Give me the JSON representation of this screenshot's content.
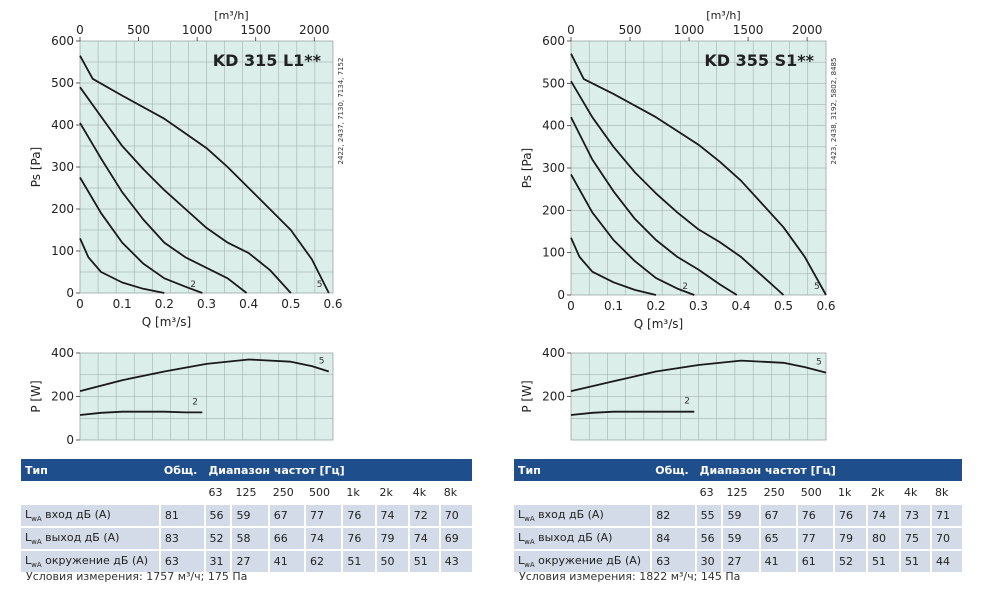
{
  "chart_data": [
    {
      "type": "line",
      "title": "KD 315 L1**",
      "side_note": "2422, 2437, 7130, 7134, 7152",
      "xlabel": "Q [m³/s]",
      "ylabel": "Ps [Pa]",
      "top_axis_label": "[m³/h]",
      "xlim": [
        0,
        0.6
      ],
      "ylim": [
        0,
        600
      ],
      "x_ticks": [
        "0",
        "0.1",
        "0.2",
        "0.3",
        "0.4",
        "0.5",
        "0.6"
      ],
      "y_ticks": [
        "0",
        "100",
        "200",
        "300",
        "400",
        "500",
        "600"
      ],
      "top_ticks": [
        "0",
        "500",
        "1000",
        "1500",
        "2000"
      ],
      "series": [
        {
          "name": "",
          "x": [
            0,
            0.02,
            0.05,
            0.1,
            0.15,
            0.2
          ],
          "y": [
            130,
            85,
            50,
            25,
            10,
            0
          ]
        },
        {
          "name": "2",
          "x": [
            0,
            0.05,
            0.1,
            0.15,
            0.2,
            0.25,
            0.29
          ],
          "y": [
            275,
            190,
            120,
            70,
            35,
            15,
            0
          ]
        },
        {
          "name": "",
          "x": [
            0,
            0.05,
            0.1,
            0.15,
            0.2,
            0.25,
            0.3,
            0.35,
            0.395
          ],
          "y": [
            405,
            320,
            240,
            175,
            120,
            85,
            60,
            35,
            0
          ]
        },
        {
          "name": "",
          "x": [
            0,
            0.05,
            0.1,
            0.15,
            0.2,
            0.25,
            0.3,
            0.35,
            0.4,
            0.45,
            0.5
          ],
          "y": [
            490,
            420,
            350,
            295,
            245,
            200,
            155,
            120,
            95,
            55,
            0
          ]
        },
        {
          "name": "5",
          "x": [
            0,
            0.03,
            0.1,
            0.2,
            0.3,
            0.35,
            0.4,
            0.45,
            0.5,
            0.55,
            0.59
          ],
          "y": [
            565,
            510,
            470,
            415,
            345,
            300,
            250,
            200,
            150,
            80,
            0
          ]
        }
      ]
    },
    {
      "type": "line",
      "xlabel": "",
      "ylabel": "P [W]",
      "xlim": [
        0,
        0.6
      ],
      "ylim": [
        0,
        400
      ],
      "y_ticks": [
        "0",
        "200",
        "400"
      ],
      "series": [
        {
          "name": "2",
          "x": [
            0,
            0.05,
            0.1,
            0.15,
            0.2,
            0.25,
            0.29
          ],
          "y": [
            115,
            125,
            130,
            130,
            130,
            127,
            127
          ]
        },
        {
          "name": "5",
          "x": [
            0,
            0.1,
            0.2,
            0.3,
            0.4,
            0.5,
            0.55,
            0.59
          ],
          "y": [
            225,
            275,
            315,
            350,
            370,
            360,
            340,
            315
          ]
        }
      ]
    },
    {
      "type": "line",
      "title": "KD 355 S1**",
      "side_note": "2423, 2438, 3192, 5802, 8485",
      "xlabel": "Q [m³/s]",
      "ylabel": "Ps [Pa]",
      "top_axis_label": "[m³/h]",
      "xlim": [
        0,
        0.6
      ],
      "ylim": [
        0,
        600
      ],
      "x_ticks": [
        "0",
        "0.1",
        "0.2",
        "0.3",
        "0.4",
        "0.5",
        "0.6"
      ],
      "y_ticks": [
        "0",
        "100",
        "200",
        "300",
        "400",
        "500",
        "600"
      ],
      "top_ticks": [
        "0",
        "500",
        "1000",
        "1500",
        "2000"
      ],
      "series": [
        {
          "name": "",
          "x": [
            0,
            0.02,
            0.05,
            0.1,
            0.15,
            0.2
          ],
          "y": [
            135,
            90,
            55,
            30,
            12,
            0
          ]
        },
        {
          "name": "2",
          "x": [
            0,
            0.05,
            0.1,
            0.15,
            0.2,
            0.25,
            0.29
          ],
          "y": [
            285,
            195,
            130,
            80,
            40,
            15,
            0
          ]
        },
        {
          "name": "",
          "x": [
            0,
            0.05,
            0.1,
            0.15,
            0.2,
            0.25,
            0.3,
            0.35,
            0.39
          ],
          "y": [
            420,
            320,
            245,
            180,
            130,
            90,
            60,
            25,
            0
          ]
        },
        {
          "name": "",
          "x": [
            0,
            0.05,
            0.1,
            0.15,
            0.2,
            0.25,
            0.3,
            0.35,
            0.4,
            0.45,
            0.5
          ],
          "y": [
            505,
            420,
            350,
            290,
            240,
            195,
            155,
            125,
            90,
            45,
            0
          ]
        },
        {
          "name": "5",
          "x": [
            0,
            0.03,
            0.1,
            0.2,
            0.3,
            0.35,
            0.4,
            0.45,
            0.5,
            0.55,
            0.6
          ],
          "y": [
            570,
            510,
            475,
            420,
            355,
            315,
            270,
            215,
            160,
            90,
            0
          ]
        }
      ]
    },
    {
      "type": "line",
      "xlabel": "",
      "ylabel": "P [W]",
      "xlim": [
        0,
        0.6
      ],
      "ylim": [
        0,
        400
      ],
      "y_ticks": [
        "200",
        "400"
      ],
      "series": [
        {
          "name": "2",
          "x": [
            0,
            0.05,
            0.1,
            0.15,
            0.2,
            0.25,
            0.29
          ],
          "y": [
            115,
            125,
            130,
            130,
            130,
            130,
            130
          ]
        },
        {
          "name": "5",
          "x": [
            0,
            0.1,
            0.2,
            0.3,
            0.4,
            0.5,
            0.55,
            0.6
          ],
          "y": [
            225,
            270,
            315,
            345,
            365,
            355,
            335,
            310
          ]
        }
      ]
    }
  ],
  "tables": [
    {
      "header": {
        "type": "Тип",
        "total": "Общ.",
        "range": "Диапазон частот [Гц]"
      },
      "freqs": [
        "63",
        "125",
        "250",
        "500",
        "1k",
        "2k",
        "4k",
        "8k"
      ],
      "rows": [
        {
          "label_sub": "wA",
          "label": "вход дБ (А)",
          "total": "81",
          "values": [
            "56",
            "59",
            "67",
            "77",
            "76",
            "74",
            "72",
            "70"
          ]
        },
        {
          "label_sub": "wA",
          "label": "выход дБ (А)",
          "total": "83",
          "values": [
            "52",
            "58",
            "66",
            "74",
            "76",
            "79",
            "74",
            "69"
          ]
        },
        {
          "label_sub": "wA",
          "label": "окружение дБ (А)",
          "total": "63",
          "values": [
            "31",
            "27",
            "41",
            "62",
            "51",
            "50",
            "51",
            "43"
          ]
        }
      ],
      "condition": "Условия измерения: 1757 м³/ч; 175 Па"
    },
    {
      "header": {
        "type": "Тип",
        "total": "Общ.",
        "range": "Диапазон частот [Гц]"
      },
      "freqs": [
        "63",
        "125",
        "250",
        "500",
        "1k",
        "2k",
        "4k",
        "8k"
      ],
      "rows": [
        {
          "label_sub": "wA",
          "label": "вход дБ (А)",
          "total": "82",
          "values": [
            "55",
            "59",
            "67",
            "76",
            "76",
            "74",
            "73",
            "71"
          ]
        },
        {
          "label_sub": "wA",
          "label": "выход дБ (А)",
          "total": "84",
          "values": [
            "56",
            "59",
            "65",
            "77",
            "79",
            "80",
            "75",
            "70"
          ]
        },
        {
          "label_sub": "wA",
          "label": "окружение дБ (А)",
          "total": "63",
          "values": [
            "30",
            "27",
            "41",
            "61",
            "52",
            "51",
            "51",
            "44"
          ]
        }
      ],
      "condition": "Условия измерения: 1822 м³/ч; 145 Па"
    }
  ],
  "colors": {
    "plot_bg": "#dbeee9",
    "grid": "#9aa7a4",
    "curve": "#1a1a1a",
    "header_bg": "#1e4f8c",
    "row_bg": "#d3dbe8"
  }
}
